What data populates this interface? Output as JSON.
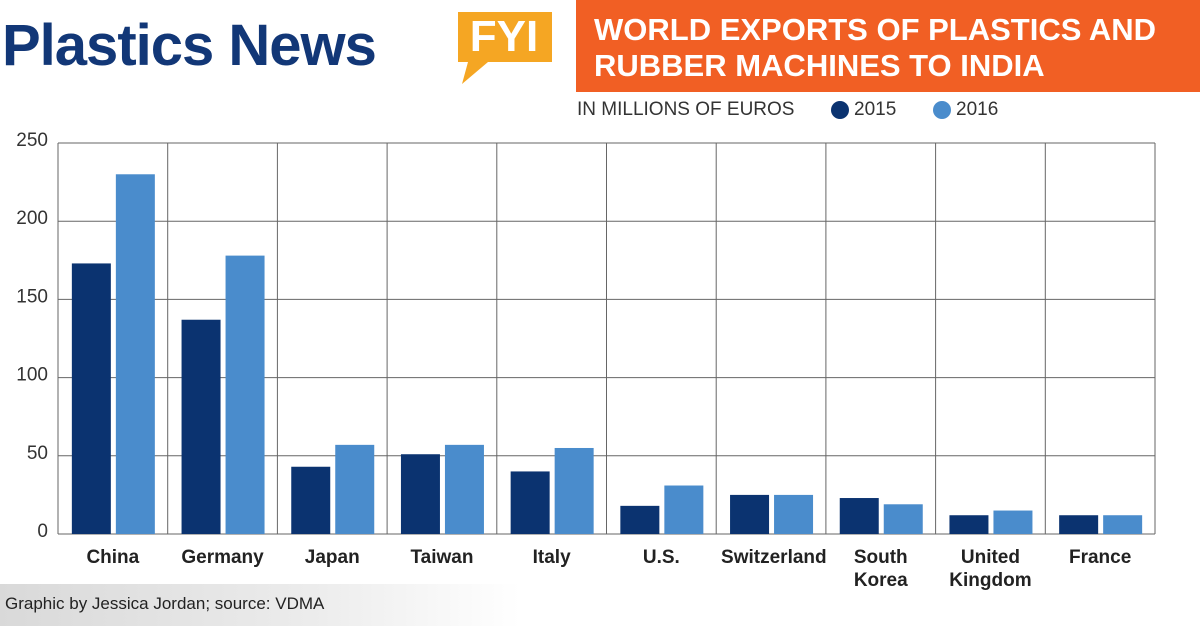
{
  "header": {
    "brand": "Plastics News",
    "badge": "FYI"
  },
  "chart_data": {
    "type": "bar",
    "title": "WORLD EXPORTS OF PLASTICS AND RUBBER MACHINES TO INDIA",
    "subtitle": "IN MILLIONS OF EUROS",
    "categories": [
      "China",
      "Germany",
      "Japan",
      "Taiwan",
      "Italy",
      "U.S.",
      "Switzerland",
      "South Korea",
      "United Kingdom",
      "France"
    ],
    "series": [
      {
        "name": "2015",
        "color": "#0b3370",
        "values": [
          173,
          137,
          43,
          51,
          40,
          18,
          25,
          23,
          12,
          12
        ]
      },
      {
        "name": "2016",
        "color": "#4a8ccc",
        "values": [
          230,
          178,
          57,
          57,
          55,
          31,
          25,
          19,
          15,
          12
        ]
      }
    ],
    "ylim": [
      0,
      250
    ],
    "yticks": [
      0,
      50,
      100,
      150,
      200,
      250
    ],
    "grid": true
  },
  "footer": "Graphic by Jessica Jordan; source: VDMA"
}
